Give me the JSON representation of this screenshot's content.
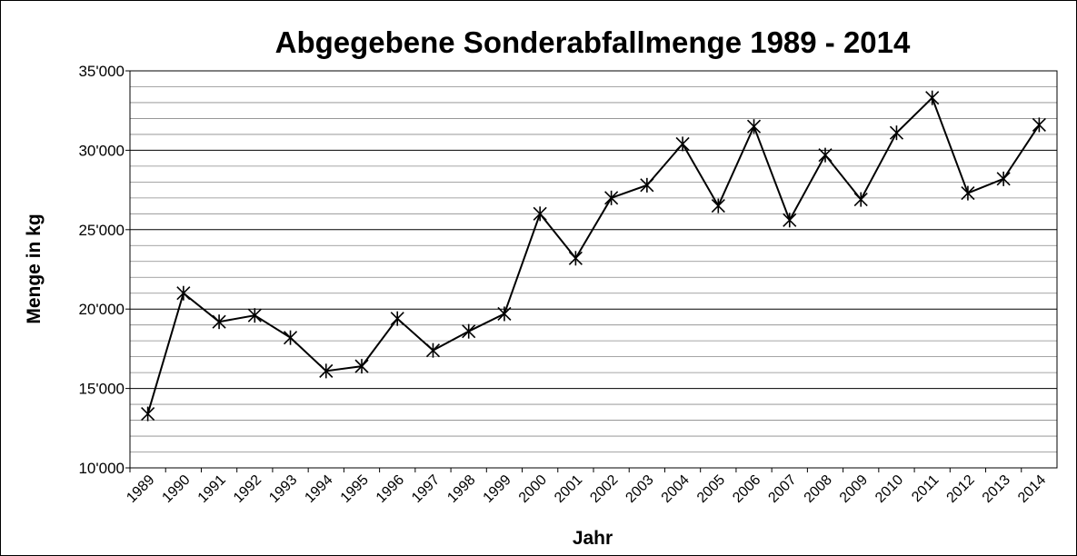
{
  "chart_data": {
    "type": "line",
    "title": "Abgegebene Sonderabfallmenge 1989 - 2014",
    "x_label": "Jahr",
    "y_label": "Menge in kg",
    "categories": [
      "1989",
      "1990",
      "1991",
      "1992",
      "1993",
      "1994",
      "1995",
      "1996",
      "1997",
      "1998",
      "1999",
      "2000",
      "2001",
      "2002",
      "2003",
      "2004",
      "2005",
      "2006",
      "2007",
      "2008",
      "2009",
      "2010",
      "2011",
      "2012",
      "2013",
      "2014"
    ],
    "series": [
      {
        "color": "#000000",
        "marker": "asterisk",
        "values": [
          13400,
          21000,
          19200,
          19600,
          18200,
          16100,
          16400,
          19400,
          17400,
          18600,
          19700,
          26000,
          23200,
          27000,
          27800,
          30400,
          26500,
          31500,
          25600,
          29700,
          26900,
          31100,
          33300,
          27300,
          28200,
          31600
        ]
      }
    ],
    "ylim": [
      10000,
      35000
    ],
    "yticks": [
      {
        "value": 10000,
        "label": "10'000"
      },
      {
        "value": 15000,
        "label": "15'000"
      },
      {
        "value": 20000,
        "label": "20'000"
      },
      {
        "value": 25000,
        "label": "25'000"
      },
      {
        "value": 30000,
        "label": "30'000"
      },
      {
        "value": 35000,
        "label": "35'000"
      }
    ],
    "minor_yticks": [
      11000,
      12000,
      13000,
      14000,
      16000,
      17000,
      18000,
      19000,
      21000,
      22000,
      23000,
      24000,
      26000,
      27000,
      28000,
      29000,
      31000,
      32000,
      33000,
      34000
    ],
    "grid": true
  }
}
